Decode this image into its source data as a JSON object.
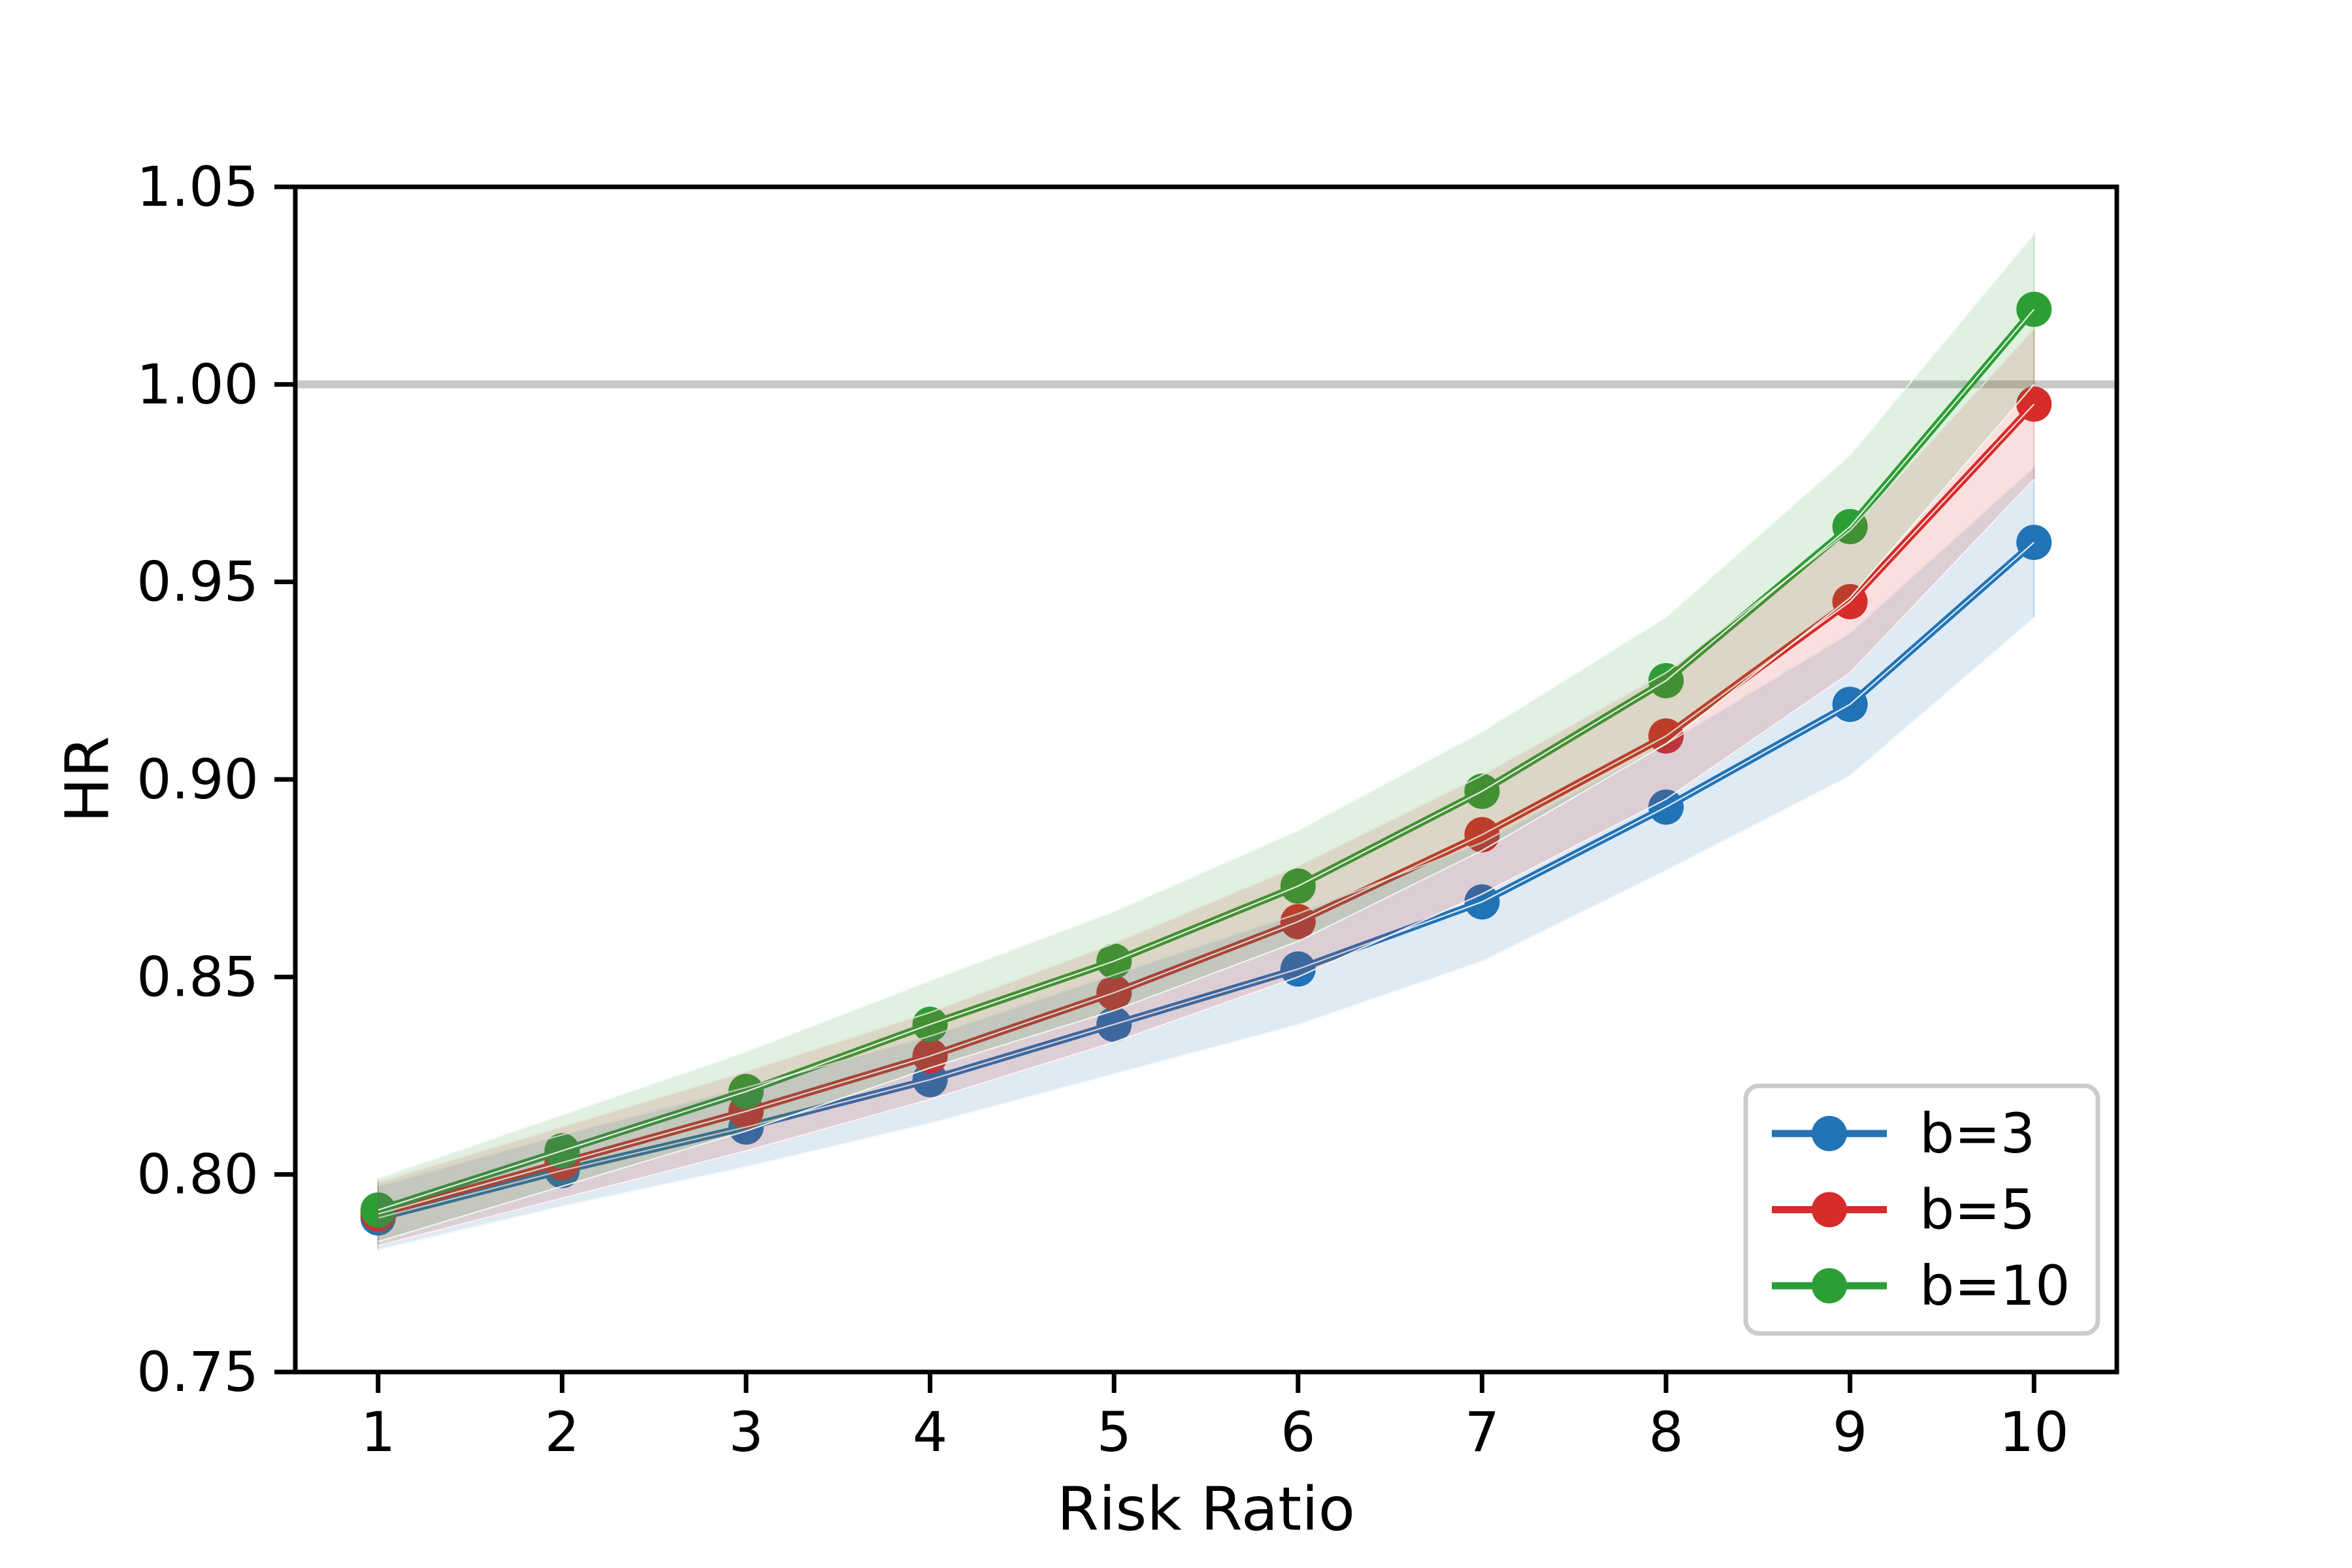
{
  "chart_data": {
    "type": "line",
    "title": "",
    "xlabel": "Risk Ratio",
    "ylabel": "HR",
    "x": [
      1,
      2,
      3,
      4,
      5,
      6,
      7,
      8,
      9,
      10
    ],
    "x_tick_labels": [
      "1",
      "2",
      "3",
      "4",
      "5",
      "6",
      "7",
      "8",
      "9",
      "10"
    ],
    "y_tick_values": [
      0.75,
      0.8,
      0.85,
      0.9,
      0.95,
      1.0,
      1.05
    ],
    "y_tick_labels": [
      "0.75",
      "0.80",
      "0.85",
      "0.90",
      "0.95",
      "1.00",
      "1.05"
    ],
    "xlim": [
      0.55,
      10.45
    ],
    "ylim": [
      0.75,
      1.05
    ],
    "grid": false,
    "background": "#ffffff",
    "reference_line": {
      "y": 1.0,
      "color": "#c8c8c8"
    },
    "band_alpha": 0.15,
    "legend": {
      "position": "lower right",
      "border_color": "#cccccc",
      "fill": "#ffffff"
    },
    "series": [
      {
        "name": "b=3",
        "color": "#2374b5",
        "values": [
          0.789,
          0.801,
          0.812,
          0.824,
          0.838,
          0.852,
          0.869,
          0.893,
          0.919,
          0.96
        ],
        "band_halfwidth": [
          0.008,
          0.009,
          0.01,
          0.011,
          0.0125,
          0.014,
          0.015,
          0.016,
          0.018,
          0.019
        ]
      },
      {
        "name": "b=5",
        "color": "#d62c2b",
        "values": [
          0.79,
          0.803,
          0.816,
          0.83,
          0.846,
          0.864,
          0.886,
          0.911,
          0.945,
          0.995
        ],
        "band_halfwidth": [
          0.008,
          0.009,
          0.01,
          0.011,
          0.0125,
          0.014,
          0.015,
          0.016,
          0.018,
          0.019
        ]
      },
      {
        "name": "b=10",
        "color": "#2d9e35",
        "values": [
          0.791,
          0.806,
          0.821,
          0.838,
          0.854,
          0.873,
          0.897,
          0.925,
          0.964,
          1.019
        ],
        "band_halfwidth": [
          0.008,
          0.009,
          0.01,
          0.011,
          0.0125,
          0.014,
          0.015,
          0.016,
          0.018,
          0.019
        ]
      }
    ]
  }
}
